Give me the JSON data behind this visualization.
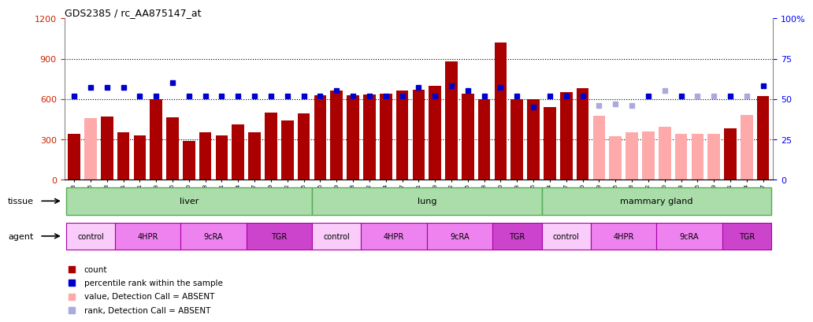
{
  "title": "GDS2385 / rc_AA875147_at",
  "samples": [
    "GSM89873",
    "GSM89875",
    "GSM89878",
    "GSM89881",
    "GSM89841",
    "GSM89843",
    "GSM89846",
    "GSM89870",
    "GSM89858",
    "GSM89861",
    "GSM89864",
    "GSM89867",
    "GSM89849",
    "GSM89852",
    "GSM89855",
    "GSM89876",
    "GSM89879",
    "GSM90168",
    "GSM89842",
    "GSM89844",
    "GSM89847",
    "GSM89871",
    "GSM89859",
    "GSM89862",
    "GSM89865",
    "GSM89868",
    "GSM89850",
    "GSM89953",
    "GSM89856",
    "GSM89874",
    "GSM89877",
    "GSM89880",
    "GSM90169",
    "GSM89845",
    "GSM89848",
    "GSM89872",
    "GSM89860",
    "GSM89863",
    "GSM89866",
    "GSM89869",
    "GSM89851",
    "GSM89854",
    "GSM89857"
  ],
  "count": [
    340,
    460,
    470,
    350,
    330,
    600,
    465,
    290,
    350,
    330,
    410,
    350,
    500,
    440,
    490,
    630,
    660,
    630,
    635,
    640,
    660,
    670,
    700,
    880,
    640,
    600,
    1020,
    600,
    600,
    540,
    650,
    680,
    475,
    320,
    350,
    360,
    390,
    340,
    340,
    340,
    380,
    480,
    620
  ],
  "count_absent": [
    false,
    true,
    false,
    false,
    false,
    false,
    false,
    false,
    false,
    false,
    false,
    false,
    false,
    false,
    false,
    false,
    false,
    false,
    false,
    false,
    false,
    false,
    false,
    false,
    false,
    false,
    false,
    false,
    false,
    false,
    false,
    false,
    true,
    true,
    true,
    true,
    true,
    true,
    true,
    true,
    false,
    true,
    false
  ],
  "percentile": [
    52,
    57,
    57,
    57,
    52,
    52,
    60,
    52,
    52,
    52,
    52,
    52,
    52,
    52,
    52,
    52,
    55,
    52,
    52,
    52,
    52,
    57,
    52,
    58,
    55,
    52,
    57,
    52,
    45,
    52,
    52,
    52,
    46,
    47,
    46,
    52,
    55,
    52,
    52,
    52,
    52,
    52,
    58
  ],
  "percentile_absent": [
    false,
    false,
    false,
    false,
    false,
    false,
    false,
    false,
    false,
    false,
    false,
    false,
    false,
    false,
    false,
    false,
    false,
    false,
    false,
    false,
    false,
    false,
    false,
    false,
    false,
    false,
    false,
    false,
    false,
    false,
    false,
    false,
    true,
    true,
    true,
    false,
    true,
    false,
    true,
    true,
    false,
    true,
    false
  ],
  "tissues": [
    {
      "label": "liver",
      "start": 0,
      "end": 15
    },
    {
      "label": "lung",
      "start": 15,
      "end": 29
    },
    {
      "label": "mammary gland",
      "start": 29,
      "end": 43
    }
  ],
  "agents": [
    {
      "label": "control",
      "start": 0,
      "end": 3,
      "color": "#f9ccf9"
    },
    {
      "label": "4HPR",
      "start": 3,
      "end": 7,
      "color": "#ee82ee"
    },
    {
      "label": "9cRA",
      "start": 7,
      "end": 11,
      "color": "#ee82ee"
    },
    {
      "label": "TGR",
      "start": 11,
      "end": 15,
      "color": "#cc44cc"
    },
    {
      "label": "control",
      "start": 15,
      "end": 18,
      "color": "#f9ccf9"
    },
    {
      "label": "4HPR",
      "start": 18,
      "end": 22,
      "color": "#ee82ee"
    },
    {
      "label": "9cRA",
      "start": 22,
      "end": 26,
      "color": "#ee82ee"
    },
    {
      "label": "TGR",
      "start": 26,
      "end": 29,
      "color": "#cc44cc"
    },
    {
      "label": "control",
      "start": 29,
      "end": 32,
      "color": "#f9ccf9"
    },
    {
      "label": "4HPR",
      "start": 32,
      "end": 36,
      "color": "#ee82ee"
    },
    {
      "label": "9cRA",
      "start": 36,
      "end": 40,
      "color": "#ee82ee"
    },
    {
      "label": "TGR",
      "start": 40,
      "end": 43,
      "color": "#cc44cc"
    }
  ],
  "bar_color_present": "#aa0000",
  "bar_color_absent": "#ffaaaa",
  "percentile_color_present": "#0000cc",
  "percentile_color_absent": "#aaaadd",
  "tissue_color": "#aaddaa",
  "tissue_border_color": "#55aa55",
  "tissue_text_color": "#000000"
}
